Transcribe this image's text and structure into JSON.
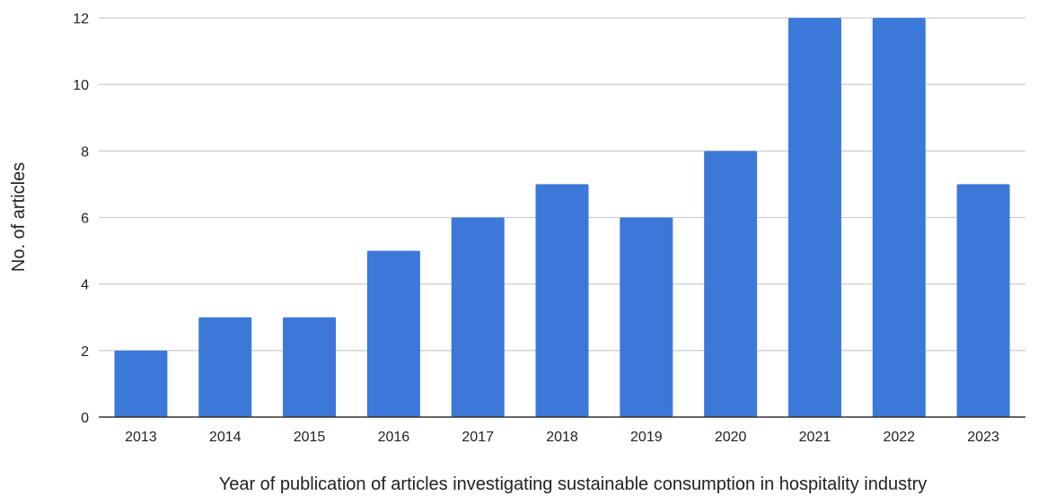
{
  "chart_data": {
    "type": "bar",
    "title": "",
    "xlabel": "Year of publication of articles investigating sustainable consumption in hospitality industry",
    "ylabel": "No. of articles",
    "categories": [
      "2013",
      "2014",
      "2015",
      "2016",
      "2017",
      "2018",
      "2019",
      "2020",
      "2021",
      "2022",
      "2023"
    ],
    "series": [
      {
        "values": [
          2,
          3,
          3,
          5,
          6,
          7,
          6,
          8,
          12,
          12,
          7
        ],
        "color": "#3c78d8"
      }
    ],
    "ylim": [
      0,
      12
    ],
    "yticks": [
      0,
      2,
      4,
      6,
      8,
      10,
      12
    ],
    "grid": true,
    "legend": "none"
  }
}
